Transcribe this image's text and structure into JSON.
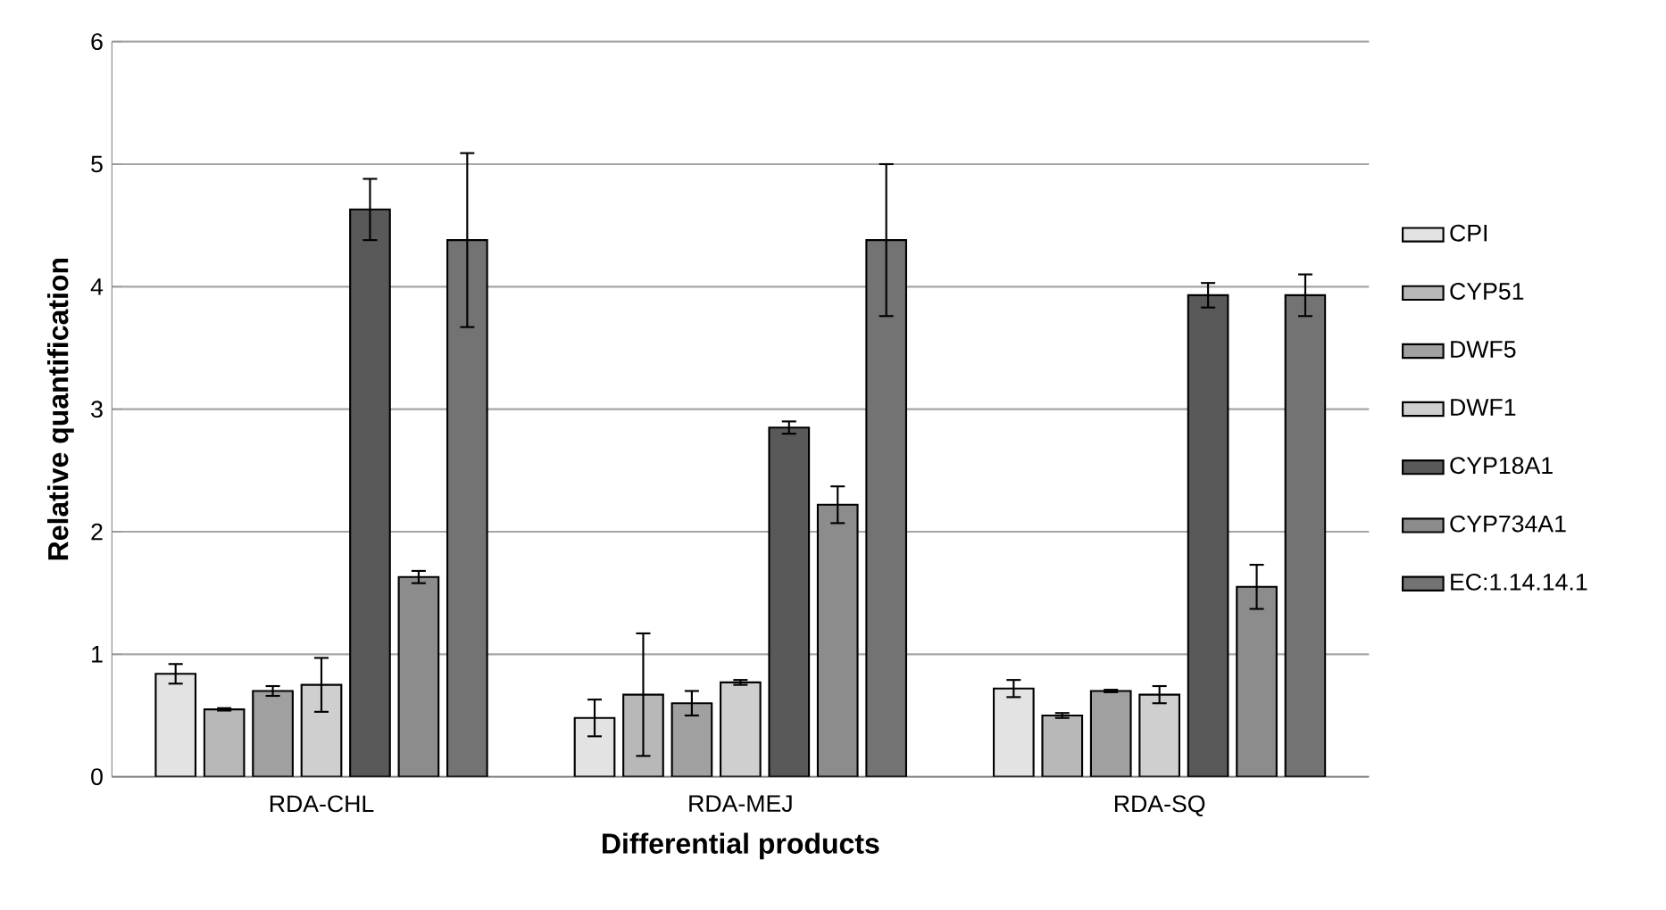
{
  "chart_data": {
    "type": "bar",
    "xlabel": "Differential products",
    "ylabel": "Relative quantification",
    "categories": [
      "RDA-CHL",
      "RDA-MEJ",
      "RDA-SQ"
    ],
    "series": [
      {
        "name": "CPI",
        "color": "#e3e3e3",
        "values": [
          0.84,
          0.48,
          0.72
        ],
        "errors": [
          0.08,
          0.15,
          0.07
        ]
      },
      {
        "name": "CYP51",
        "color": "#b8b8b8",
        "values": [
          0.55,
          0.67,
          0.5
        ],
        "errors": [
          0.01,
          0.5,
          0.02
        ]
      },
      {
        "name": "DWF5",
        "color": "#a0a0a0",
        "values": [
          0.7,
          0.6,
          0.7
        ],
        "errors": [
          0.04,
          0.1,
          0.01
        ]
      },
      {
        "name": "DWF1",
        "color": "#cfcfcf",
        "values": [
          0.75,
          0.77,
          0.67
        ],
        "errors": [
          0.22,
          0.02,
          0.07
        ]
      },
      {
        "name": "CYP18A1",
        "color": "#595959",
        "values": [
          4.63,
          2.85,
          3.93
        ],
        "errors": [
          0.25,
          0.05,
          0.1
        ]
      },
      {
        "name": "CYP734A1",
        "color": "#8c8c8c",
        "values": [
          1.63,
          2.22,
          1.55
        ],
        "errors": [
          0.05,
          0.15,
          0.18
        ]
      },
      {
        "name": "EC:1.14.14.1",
        "color": "#737373",
        "values": [
          4.38,
          4.38,
          3.93
        ],
        "errors": [
          0.71,
          0.62,
          0.17
        ]
      }
    ],
    "ylim": [
      0,
      6
    ],
    "yticks": [
      0,
      1,
      2,
      3,
      4,
      5,
      6
    ],
    "grid": "y",
    "legend": "right"
  }
}
